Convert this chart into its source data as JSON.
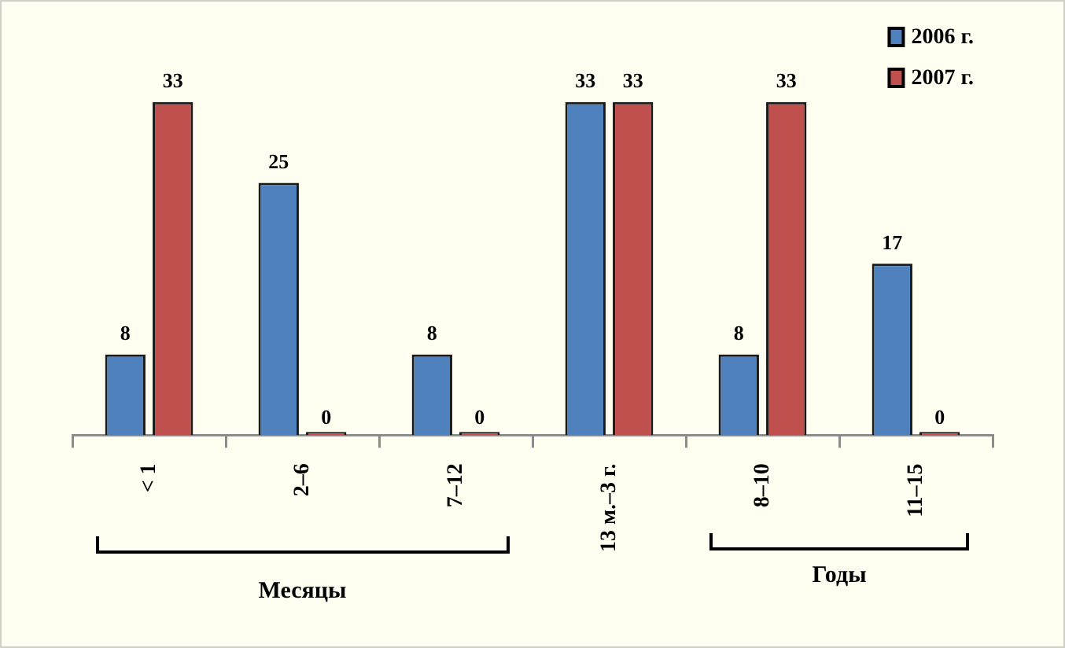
{
  "chart_data": {
    "type": "bar",
    "categories": [
      "< 1",
      "2–6",
      "7–12",
      "13 м.–3 г.",
      "8–10",
      "11–15"
    ],
    "series": [
      {
        "name": "2006 г.",
        "color": "#4f81bd",
        "values": [
          8,
          25,
          8,
          33,
          8,
          17
        ]
      },
      {
        "name": "2007 г.",
        "color": "#c0504d",
        "values": [
          33,
          0,
          0,
          33,
          33,
          0
        ]
      }
    ],
    "data_labels": true,
    "legend": "top right",
    "grid": false,
    "annotations": [
      "Месяцы",
      "Годы"
    ]
  }
}
